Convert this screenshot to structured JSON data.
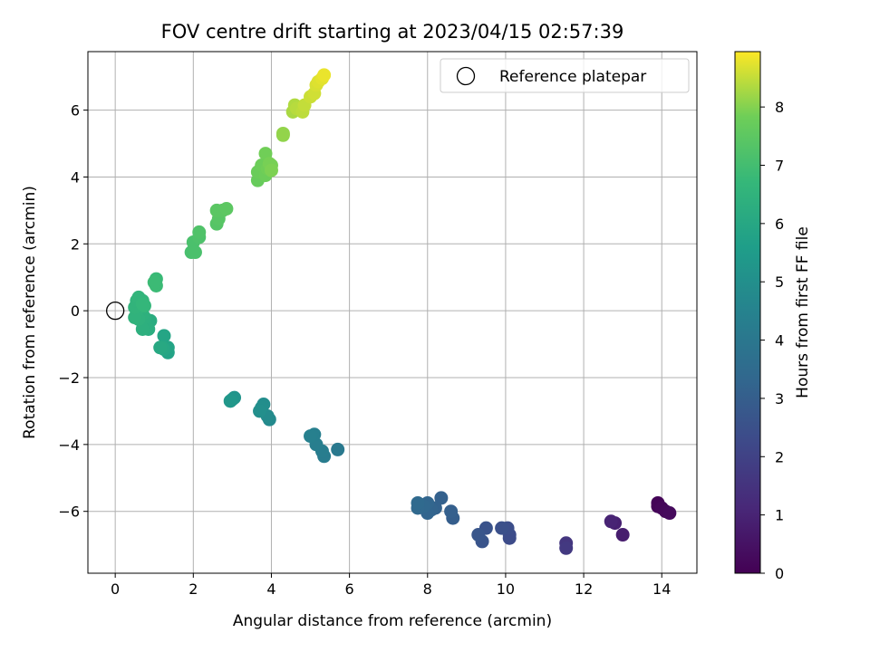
{
  "chart_data": {
    "type": "scatter",
    "title": "FOV centre drift starting at 2023/04/15 02:57:39",
    "xlabel": "Angular distance from reference (arcmin)",
    "ylabel": "Rotation from reference (arcmin)",
    "xlim": [
      -0.7,
      14.9
    ],
    "ylim": [
      -7.85,
      7.75
    ],
    "xticks": [
      0,
      2,
      4,
      6,
      8,
      10,
      12,
      14
    ],
    "yticks": [
      -6,
      -4,
      -2,
      0,
      2,
      4,
      6
    ],
    "grid": true,
    "colormap": "viridis",
    "colorbar": {
      "label": "Hours from first FF file",
      "range": [
        0,
        8.95
      ],
      "ticks": [
        0,
        1,
        2,
        3,
        4,
        5,
        6,
        7,
        8
      ]
    },
    "legend": {
      "position": "upper right",
      "entries": [
        {
          "label": "Reference platepar",
          "marker": "open-circle"
        }
      ]
    },
    "reference_point": {
      "x": 0,
      "y": 0
    },
    "points": [
      {
        "x": 13.9,
        "y": -5.75,
        "c": 0.1
      },
      {
        "x": 13.9,
        "y": -5.85,
        "c": 0.1
      },
      {
        "x": 14.0,
        "y": -5.9,
        "c": 0.15
      },
      {
        "x": 14.1,
        "y": -6.0,
        "c": 0.2
      },
      {
        "x": 14.2,
        "y": -6.05,
        "c": 0.25
      },
      {
        "x": 13.0,
        "y": -6.7,
        "c": 0.8
      },
      {
        "x": 12.8,
        "y": -6.35,
        "c": 0.9
      },
      {
        "x": 12.7,
        "y": -6.3,
        "c": 1.0
      },
      {
        "x": 11.55,
        "y": -6.95,
        "c": 1.6
      },
      {
        "x": 11.55,
        "y": -7.1,
        "c": 1.7
      },
      {
        "x": 10.1,
        "y": -6.8,
        "c": 2.3
      },
      {
        "x": 10.1,
        "y": -6.7,
        "c": 2.35
      },
      {
        "x": 10.05,
        "y": -6.5,
        "c": 2.4
      },
      {
        "x": 9.9,
        "y": -6.5,
        "c": 2.5
      },
      {
        "x": 9.5,
        "y": -6.5,
        "c": 2.6
      },
      {
        "x": 9.4,
        "y": -6.9,
        "c": 2.65
      },
      {
        "x": 9.3,
        "y": -6.7,
        "c": 2.7
      },
      {
        "x": 8.65,
        "y": -6.2,
        "c": 3.0
      },
      {
        "x": 8.6,
        "y": -6.0,
        "c": 3.05
      },
      {
        "x": 8.35,
        "y": -5.6,
        "c": 3.1
      },
      {
        "x": 8.2,
        "y": -5.9,
        "c": 3.15
      },
      {
        "x": 8.1,
        "y": -5.95,
        "c": 3.2
      },
      {
        "x": 8.0,
        "y": -6.05,
        "c": 3.25
      },
      {
        "x": 8.0,
        "y": -5.75,
        "c": 3.3
      },
      {
        "x": 7.9,
        "y": -5.85,
        "c": 3.35
      },
      {
        "x": 7.75,
        "y": -5.9,
        "c": 3.4
      },
      {
        "x": 7.75,
        "y": -5.75,
        "c": 3.45
      },
      {
        "x": 5.7,
        "y": -4.15,
        "c": 4.1
      },
      {
        "x": 5.35,
        "y": -4.35,
        "c": 4.2
      },
      {
        "x": 5.3,
        "y": -4.2,
        "c": 4.25
      },
      {
        "x": 5.15,
        "y": -4.0,
        "c": 4.3
      },
      {
        "x": 5.1,
        "y": -3.7,
        "c": 4.35
      },
      {
        "x": 5.0,
        "y": -3.75,
        "c": 4.4
      },
      {
        "x": 3.95,
        "y": -3.25,
        "c": 4.8
      },
      {
        "x": 3.9,
        "y": -3.15,
        "c": 4.85
      },
      {
        "x": 3.8,
        "y": -2.8,
        "c": 4.9
      },
      {
        "x": 3.75,
        "y": -2.9,
        "c": 4.95
      },
      {
        "x": 3.7,
        "y": -3.0,
        "c": 5.0
      },
      {
        "x": 3.05,
        "y": -2.6,
        "c": 5.2
      },
      {
        "x": 3.0,
        "y": -2.65,
        "c": 5.25
      },
      {
        "x": 2.95,
        "y": -2.7,
        "c": 5.3
      },
      {
        "x": 1.35,
        "y": -1.25,
        "c": 5.8
      },
      {
        "x": 1.35,
        "y": -1.1,
        "c": 5.85
      },
      {
        "x": 1.25,
        "y": -0.75,
        "c": 5.9
      },
      {
        "x": 1.25,
        "y": -1.15,
        "c": 5.95
      },
      {
        "x": 1.2,
        "y": -1.1,
        "c": 6.0
      },
      {
        "x": 1.15,
        "y": -1.1,
        "c": 6.05
      },
      {
        "x": 0.9,
        "y": -0.3,
        "c": 6.2
      },
      {
        "x": 0.85,
        "y": -0.55,
        "c": 6.25
      },
      {
        "x": 0.8,
        "y": -0.5,
        "c": 6.3
      },
      {
        "x": 0.75,
        "y": -0.4,
        "c": 6.3
      },
      {
        "x": 0.7,
        "y": -0.55,
        "c": 6.35
      },
      {
        "x": 0.75,
        "y": -0.2,
        "c": 6.35
      },
      {
        "x": 0.7,
        "y": -0.1,
        "c": 6.4
      },
      {
        "x": 0.65,
        "y": 0.05,
        "c": 6.4
      },
      {
        "x": 0.6,
        "y": -0.25,
        "c": 6.45
      },
      {
        "x": 0.6,
        "y": 0.15,
        "c": 6.45
      },
      {
        "x": 0.55,
        "y": 0.0,
        "c": 6.5
      },
      {
        "x": 0.5,
        "y": -0.2,
        "c": 6.5
      },
      {
        "x": 0.5,
        "y": 0.1,
        "c": 6.55
      },
      {
        "x": 0.55,
        "y": 0.3,
        "c": 6.55
      },
      {
        "x": 0.6,
        "y": 0.4,
        "c": 6.6
      },
      {
        "x": 0.7,
        "y": 0.3,
        "c": 6.6
      },
      {
        "x": 0.75,
        "y": 0.15,
        "c": 6.65
      },
      {
        "x": 0.7,
        "y": 0.2,
        "c": 6.65
      },
      {
        "x": 1.05,
        "y": 0.95,
        "c": 6.8
      },
      {
        "x": 1.05,
        "y": 0.75,
        "c": 6.85
      },
      {
        "x": 1.0,
        "y": 0.85,
        "c": 6.85
      },
      {
        "x": 1.95,
        "y": 1.75,
        "c": 7.1
      },
      {
        "x": 2.0,
        "y": 2.05,
        "c": 7.15
      },
      {
        "x": 2.05,
        "y": 1.75,
        "c": 7.15
      },
      {
        "x": 2.15,
        "y": 2.2,
        "c": 7.2
      },
      {
        "x": 2.15,
        "y": 2.35,
        "c": 7.25
      },
      {
        "x": 2.6,
        "y": 2.6,
        "c": 7.35
      },
      {
        "x": 2.65,
        "y": 2.75,
        "c": 7.4
      },
      {
        "x": 2.6,
        "y": 3.0,
        "c": 7.45
      },
      {
        "x": 2.75,
        "y": 3.0,
        "c": 7.45
      },
      {
        "x": 2.85,
        "y": 3.05,
        "c": 7.5
      },
      {
        "x": 3.65,
        "y": 3.9,
        "c": 7.7
      },
      {
        "x": 3.65,
        "y": 4.15,
        "c": 7.75
      },
      {
        "x": 3.75,
        "y": 4.35,
        "c": 7.8
      },
      {
        "x": 3.85,
        "y": 4.05,
        "c": 7.8
      },
      {
        "x": 3.9,
        "y": 4.25,
        "c": 7.85
      },
      {
        "x": 3.85,
        "y": 4.7,
        "c": 7.85
      },
      {
        "x": 3.95,
        "y": 4.4,
        "c": 7.9
      },
      {
        "x": 4.0,
        "y": 4.35,
        "c": 7.9
      },
      {
        "x": 4.0,
        "y": 4.2,
        "c": 7.95
      },
      {
        "x": 4.3,
        "y": 5.25,
        "c": 8.1
      },
      {
        "x": 4.3,
        "y": 5.3,
        "c": 8.12
      },
      {
        "x": 4.55,
        "y": 5.95,
        "c": 8.3
      },
      {
        "x": 4.6,
        "y": 6.15,
        "c": 8.35
      },
      {
        "x": 4.65,
        "y": 6.05,
        "c": 8.4
      },
      {
        "x": 4.8,
        "y": 5.95,
        "c": 8.45
      },
      {
        "x": 4.85,
        "y": 6.15,
        "c": 8.5
      },
      {
        "x": 5.0,
        "y": 6.4,
        "c": 8.55
      },
      {
        "x": 5.1,
        "y": 6.5,
        "c": 8.6
      },
      {
        "x": 5.15,
        "y": 6.75,
        "c": 8.65
      },
      {
        "x": 5.2,
        "y": 6.85,
        "c": 8.7
      },
      {
        "x": 5.3,
        "y": 6.95,
        "c": 8.75
      },
      {
        "x": 5.35,
        "y": 7.05,
        "c": 8.8
      }
    ]
  }
}
